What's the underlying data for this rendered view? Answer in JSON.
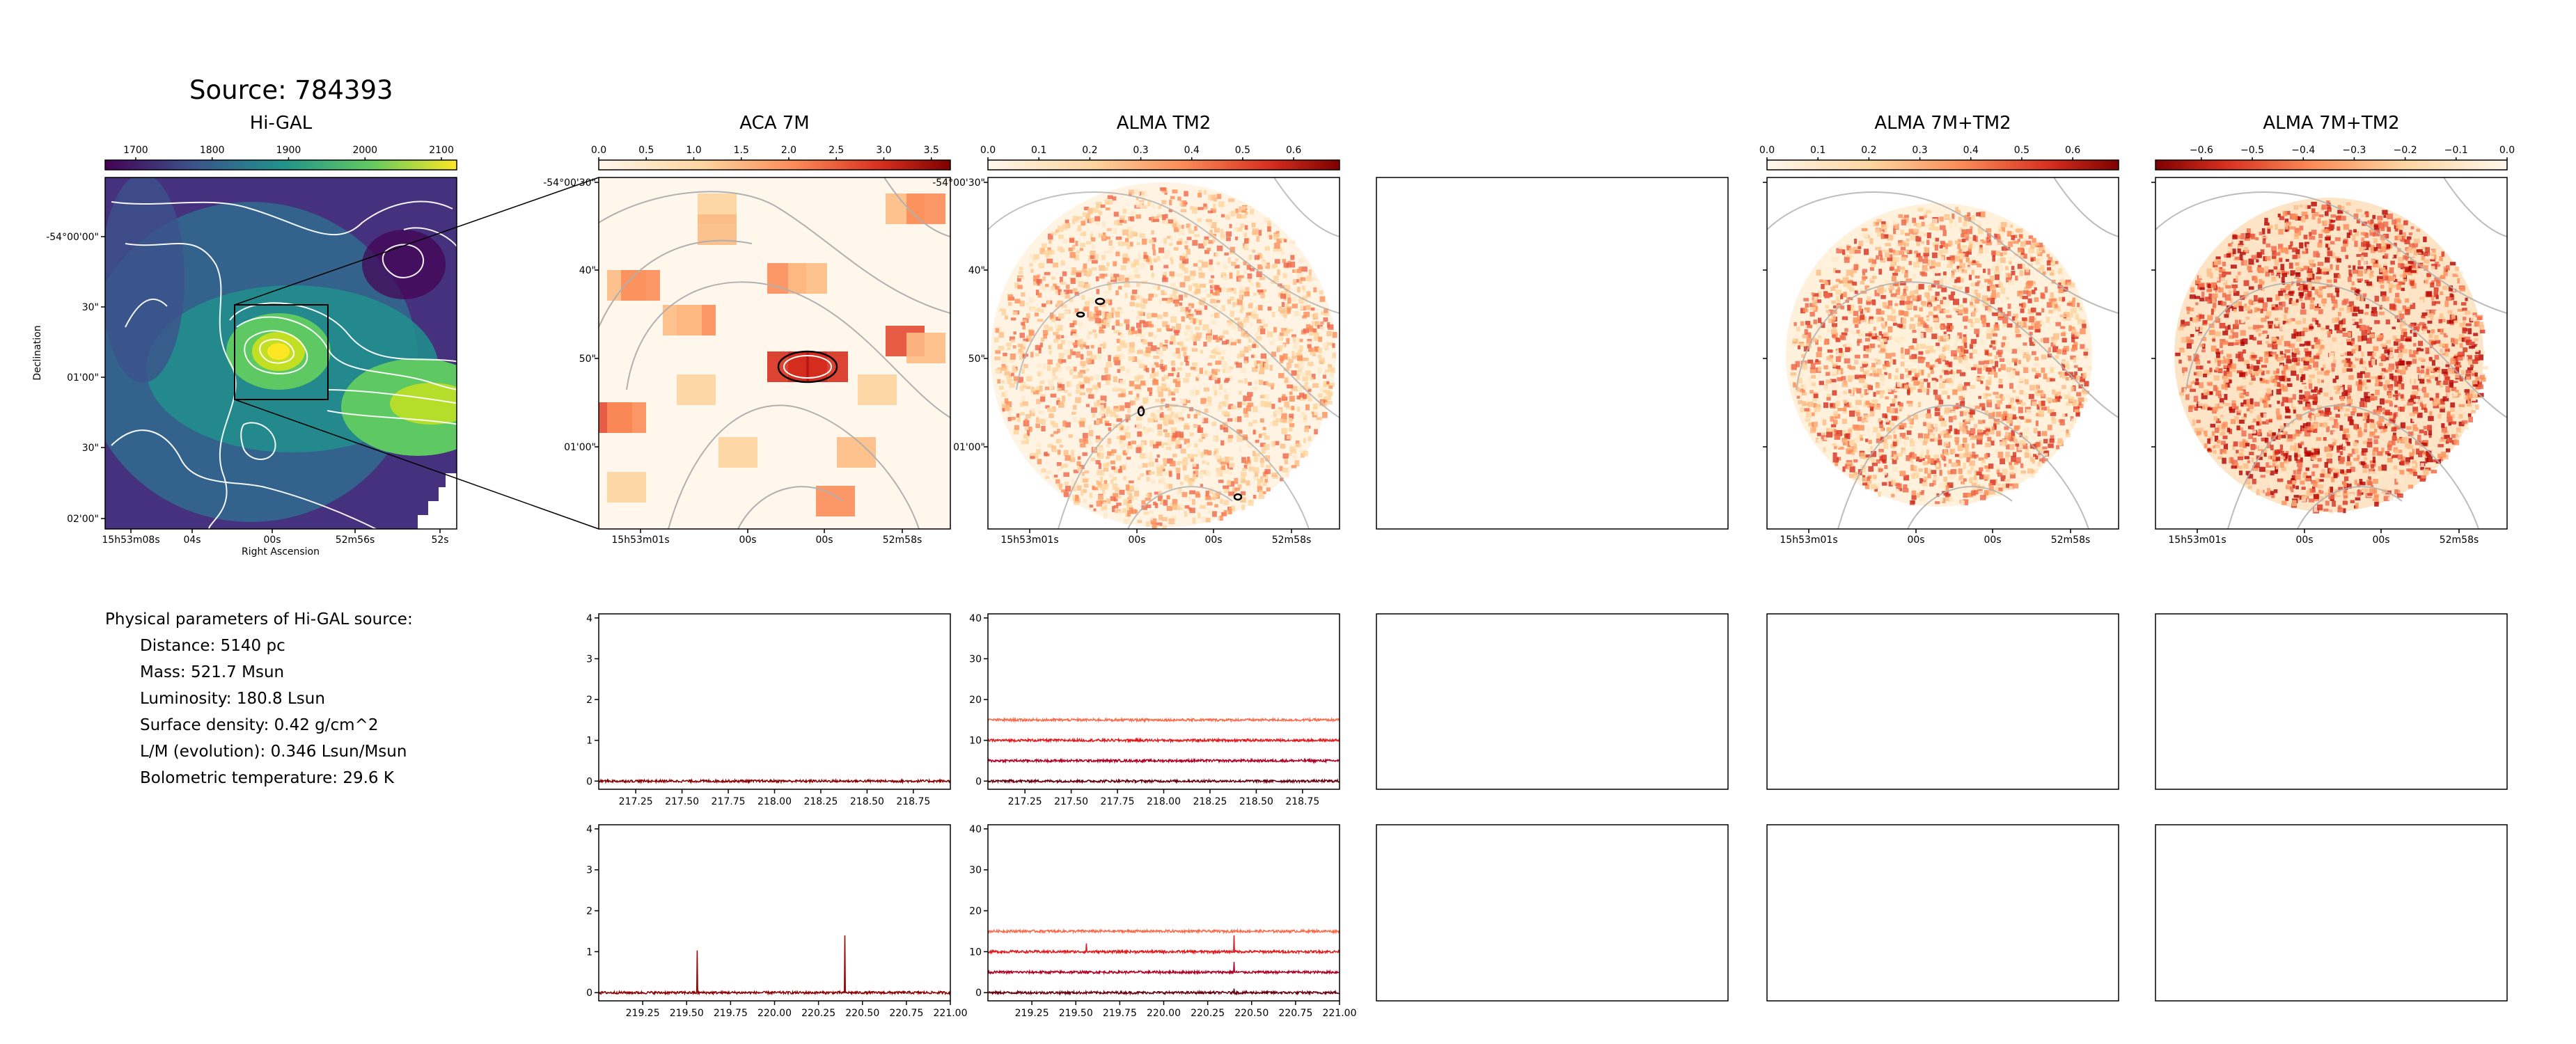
{
  "source_title": "Source: 784393",
  "panel_titles": {
    "higal": "Hi-GAL",
    "aca": "ACA 7M",
    "tm2": "ALMA TM2",
    "combo1": "ALMA 7M+TM2",
    "combo2": "ALMA 7M+TM2"
  },
  "colorbars": {
    "higal": {
      "ticks": [
        "1700",
        "1800",
        "1900",
        "2000",
        "2100"
      ],
      "range": [
        1660,
        2120
      ],
      "values": [
        1700,
        1800,
        1900,
        2000,
        2100
      ],
      "cmap": "viridis"
    },
    "aca": {
      "ticks": [
        "0.0",
        "0.5",
        "1.0",
        "1.5",
        "2.0",
        "2.5",
        "3.0",
        "3.5"
      ],
      "range": [
        0,
        3.7
      ],
      "values": [
        0,
        0.5,
        1,
        1.5,
        2,
        2.5,
        3,
        3.5
      ],
      "cmap": "OrRd"
    },
    "tm2": {
      "ticks": [
        "0.0",
        "0.1",
        "0.2",
        "0.3",
        "0.4",
        "0.5",
        "0.6"
      ],
      "range": [
        0,
        0.69
      ],
      "values": [
        0,
        0.1,
        0.2,
        0.3,
        0.4,
        0.5,
        0.6
      ],
      "cmap": "OrRd"
    },
    "combo1": {
      "ticks": [
        "0.0",
        "0.1",
        "0.2",
        "0.3",
        "0.4",
        "0.5",
        "0.6"
      ],
      "range": [
        0,
        0.69
      ],
      "values": [
        0,
        0.1,
        0.2,
        0.3,
        0.4,
        0.5,
        0.6
      ],
      "cmap": "OrRd"
    },
    "combo2": {
      "ticks": [
        "−0.6",
        "−0.5",
        "−0.4",
        "−0.3",
        "−0.2",
        "−0.1",
        "0.0"
      ],
      "range": [
        -0.69,
        0
      ],
      "values": [
        -0.6,
        -0.5,
        -0.4,
        -0.3,
        -0.2,
        -0.1,
        0
      ],
      "cmap": "OrRd_r"
    }
  },
  "higal_axes": {
    "xlabel": "Right Ascension",
    "ylabel": "Declination",
    "xticks": [
      "15h53m08s",
      "04s",
      "00s",
      "52m56s",
      "52s"
    ],
    "yticks": [
      "-54°00'00\"",
      "30\"",
      "01'00\"",
      "30\"",
      "02'00\""
    ]
  },
  "zoom_axes": {
    "xticks": [
      "15h53m01s",
      "00s",
      "00s",
      "52m58s"
    ],
    "yticks": [
      "-54°00'30\"",
      "40\"",
      "50\"",
      "01'00\""
    ]
  },
  "params": {
    "heading": "Physical parameters of Hi-GAL source:",
    "lines": [
      "Distance: 5140 pc",
      "Mass: 521.7 Msun",
      "Luminosity: 180.8 Lsun",
      "Surface density: 0.42 g/cm^2",
      "L/M (evolution): 0.346 Lsun/Msun",
      "Bolometric temperature: 29.6 K"
    ]
  },
  "chart_data": [
    {
      "type": "line",
      "panel": "ACA 7M spectrum (row 1)",
      "x_ticks": [
        "217.25",
        "217.50",
        "217.75",
        "218.00",
        "218.25",
        "218.50",
        "218.75"
      ],
      "xlim": [
        217.05,
        218.95
      ],
      "y_ticks": [
        "0",
        "1",
        "2",
        "3",
        "4"
      ],
      "ylim": [
        -0.2,
        4.1
      ],
      "series": [
        {
          "color": "#8b0000",
          "baseline": 0,
          "noise": 0.03,
          "peaks": []
        }
      ]
    },
    {
      "type": "line",
      "panel": "ALMA TM2 spectrum (row 1)",
      "x_ticks": [
        "217.25",
        "217.50",
        "217.75",
        "218.00",
        "218.25",
        "218.50",
        "218.75"
      ],
      "xlim": [
        217.05,
        218.95
      ],
      "y_ticks": [
        "0",
        "10",
        "20",
        "30",
        "40"
      ],
      "ylim": [
        -2,
        41
      ],
      "series": [
        {
          "color": "#fb6a4a",
          "baseline": 15,
          "noise": 0.3,
          "peaks": []
        },
        {
          "color": "#e31a1c",
          "baseline": 10,
          "noise": 0.3,
          "peaks": []
        },
        {
          "color": "#b10026",
          "baseline": 5,
          "noise": 0.3,
          "peaks": []
        },
        {
          "color": "#67000d",
          "baseline": 0,
          "noise": 0.3,
          "peaks": []
        }
      ]
    },
    {
      "type": "line",
      "panel": "ACA 7M spectrum (row 2)",
      "x_ticks": [
        "219.25",
        "219.50",
        "219.75",
        "220.00",
        "220.25",
        "220.50",
        "220.75",
        "221.00"
      ],
      "xlim": [
        219.0,
        221.0
      ],
      "y_ticks": [
        "0",
        "1",
        "2",
        "3",
        "4"
      ],
      "y_tick_values": [
        0,
        1,
        2,
        3,
        4
      ],
      "ylim": [
        -0.2,
        4.1
      ],
      "series": [
        {
          "color": "#8b0000",
          "baseline": 0,
          "noise": 0.03,
          "peaks": [
            {
              "x": 219.56,
              "h": 1.03
            },
            {
              "x": 220.4,
              "h": 1.4
            }
          ]
        }
      ]
    },
    {
      "type": "line",
      "panel": "ALMA TM2 spectrum (row 2)",
      "x_ticks": [
        "219.25",
        "219.50",
        "219.75",
        "220.00",
        "220.25",
        "220.50",
        "220.75",
        "221.00"
      ],
      "xlim": [
        219.0,
        221.0
      ],
      "y_ticks": [
        "0",
        "10",
        "20",
        "30",
        "40"
      ],
      "ylim": [
        -2,
        41
      ],
      "series": [
        {
          "color": "#fb6a4a",
          "baseline": 15,
          "noise": 0.3,
          "peaks": []
        },
        {
          "color": "#e31a1c",
          "baseline": 10,
          "noise": 0.3,
          "peaks": [
            {
              "x": 219.56,
              "h": 2.0
            },
            {
              "x": 220.4,
              "h": 4.0
            }
          ]
        },
        {
          "color": "#b10026",
          "baseline": 5,
          "noise": 0.3,
          "peaks": [
            {
              "x": 220.4,
              "h": 2.5
            }
          ]
        },
        {
          "color": "#67000d",
          "baseline": 0,
          "noise": 0.3,
          "peaks": [
            {
              "x": 220.4,
              "h": 1.0
            }
          ]
        }
      ]
    }
  ]
}
